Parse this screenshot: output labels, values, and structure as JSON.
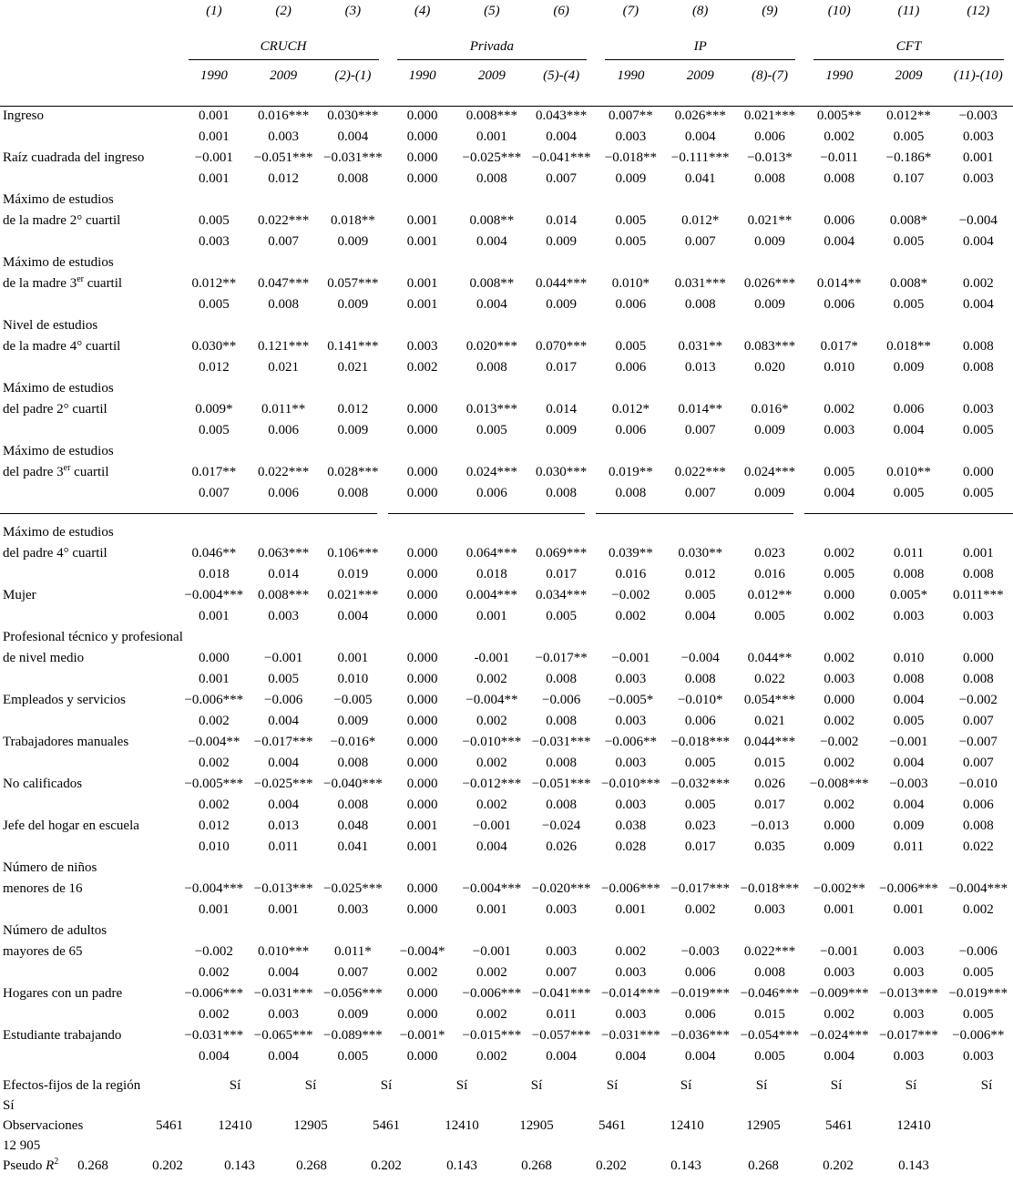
{
  "header": {
    "column_numbers": [
      "(1)",
      "(2)",
      "(3)",
      "(4)",
      "(5)",
      "(6)",
      "(7)",
      "(8)",
      "(9)",
      "(10)",
      "(11)",
      "(12)"
    ],
    "groups": [
      "CRUCH",
      "Privada",
      "IP",
      "CFT"
    ],
    "sub_columns": [
      "1990",
      "2009",
      "(2)-(1)",
      "1990",
      "2009",
      "(5)-(4)",
      "1990",
      "2009",
      "(8)-(7)",
      "1990",
      "2009",
      "(11)-(10)"
    ]
  },
  "rows": [
    {
      "label_lines": [
        "Ingreso"
      ],
      "coef": [
        "0.001",
        "0.016***",
        "0.030***",
        "0.000",
        "0.008***",
        "0.043***",
        "0.007**",
        "0.026***",
        "0.021***",
        "0.005**",
        "0.012**",
        "−0.003"
      ],
      "se": [
        "0.001",
        "0.003",
        "0.004",
        "0.000",
        "0.001",
        "0.004",
        "0.003",
        "0.004",
        "0.006",
        "0.002",
        "0.005",
        "0.003"
      ]
    },
    {
      "label_lines": [
        "Raíz cuadrada del ingreso"
      ],
      "coef": [
        "−0.001",
        "−0.051***",
        "−0.031***",
        "0.000",
        "−0.025***",
        "−0.041***",
        "−0.018**",
        "−0.111***",
        "−0.013*",
        "−0.011",
        "−0.186*",
        "0.001"
      ],
      "se": [
        "0.001",
        "0.012",
        "0.008",
        "0.000",
        "0.008",
        "0.007",
        "0.009",
        "0.041",
        "0.008",
        "0.008",
        "0.107",
        "0.003"
      ]
    },
    {
      "label_lines": [
        "Máximo de estudios",
        "de la madre 2° cuartil"
      ],
      "coef": [
        "0.005",
        "0.022***",
        "0.018**",
        "0.001",
        "0.008**",
        "0.014",
        "0.005",
        "0.012*",
        "0.021**",
        "0.006",
        "0.008*",
        "−0.004"
      ],
      "se": [
        "0.003",
        "0.007",
        "0.009",
        "0.001",
        "0.004",
        "0.009",
        "0.005",
        "0.007",
        "0.009",
        "0.004",
        "0.005",
        "0.004"
      ]
    },
    {
      "label_lines": [
        "Máximo de estudios",
        "de la madre 3^{er} cuartil"
      ],
      "coef": [
        "0.012**",
        "0.047***",
        "0.057***",
        "0.001",
        "0.008**",
        "0.044***",
        "0.010*",
        "0.031***",
        "0.026***",
        "0.014**",
        "0.008*",
        "0.002"
      ],
      "se": [
        "0.005",
        "0.008",
        "0.009",
        "0.001",
        "0.004",
        "0.009",
        "0.006",
        "0.008",
        "0.009",
        "0.006",
        "0.005",
        "0.004"
      ]
    },
    {
      "label_lines": [
        "Nivel de estudios",
        "de la madre 4° cuartil"
      ],
      "coef": [
        "0.030**",
        "0.121***",
        "0.141***",
        "0.003",
        "0.020***",
        "0.070***",
        "0.005",
        "0.031**",
        "0.083***",
        "0.017*",
        "0.018**",
        "0.008"
      ],
      "se": [
        "0.012",
        "0.021",
        "0.021",
        "0.002",
        "0.008",
        "0.017",
        "0.006",
        "0.013",
        "0.020",
        "0.010",
        "0.009",
        "0.008"
      ]
    },
    {
      "label_lines": [
        "Máximo de estudios",
        "del padre 2° cuartil"
      ],
      "coef": [
        "0.009*",
        "0.011**",
        "0.012",
        "0.000",
        "0.013***",
        "0.014",
        "0.012*",
        "0.014**",
        "0.016*",
        "0.002",
        "0.006",
        "0.003"
      ],
      "se": [
        "0.005",
        "0.006",
        "0.009",
        "0.000",
        "0.005",
        "0.009",
        "0.006",
        "0.007",
        "0.009",
        "0.003",
        "0.004",
        "0.005"
      ]
    },
    {
      "label_lines": [
        "Máximo de estudios",
        "del padre 3^{er} cuartil"
      ],
      "coef": [
        "0.017**",
        "0.022***",
        "0.028***",
        "0.000",
        "0.024***",
        "0.030***",
        "0.019**",
        "0.022***",
        "0.024***",
        "0.005",
        "0.010**",
        "0.000"
      ],
      "se": [
        "0.007",
        "0.006",
        "0.008",
        "0.000",
        "0.006",
        "0.008",
        "0.008",
        "0.007",
        "0.009",
        "0.004",
        "0.005",
        "0.005"
      ]
    },
    {
      "rule_before": true,
      "label_lines": [
        "Máximo de estudios",
        "del padre 4° cuartil"
      ],
      "coef": [
        "0.046**",
        "0.063***",
        "0.106***",
        "0.000",
        "0.064***",
        "0.069***",
        "0.039**",
        "0.030**",
        "0.023",
        "0.002",
        "0.011",
        "0.001"
      ],
      "se": [
        "0.018",
        "0.014",
        "0.019",
        "0.000",
        "0.018",
        "0.017",
        "0.016",
        "0.012",
        "0.016",
        "0.005",
        "0.008",
        "0.008"
      ]
    },
    {
      "label_lines": [
        "Mujer"
      ],
      "coef": [
        "−0.004***",
        "0.008***",
        "0.021***",
        "0.000",
        "0.004***",
        "0.034***",
        "−0.002",
        "0.005",
        "0.012**",
        "0.000",
        "0.005*",
        "0.011***"
      ],
      "se": [
        "0.001",
        "0.003",
        "0.004",
        "0.000",
        "0.001",
        "0.005",
        "0.002",
        "0.004",
        "0.005",
        "0.002",
        "0.003",
        "0.003"
      ]
    },
    {
      "label_lines": [
        "Profesional técnico y profesional",
        "de nivel medio"
      ],
      "coef": [
        "0.000",
        "−0.001",
        "0.001",
        "0.000",
        "-0.001",
        "−0.017**",
        "−0.001",
        "−0.004",
        "0.044**",
        "0.002",
        "0.010",
        "0.000"
      ],
      "se": [
        "0.001",
        "0.005",
        "0.010",
        "0.000",
        "0.002",
        "0.008",
        "0.003",
        "0.008",
        "0.022",
        "0.003",
        "0.008",
        "0.008"
      ]
    },
    {
      "label_lines": [
        "Empleados y servicios"
      ],
      "coef": [
        "−0.006***",
        "−0.006",
        "−0.005",
        "0.000",
        "−0.004**",
        "−0.006",
        "−0.005*",
        "−0.010*",
        "0.054***",
        "0.000",
        "0.004",
        "−0.002"
      ],
      "se": [
        "0.002",
        "0.004",
        "0.009",
        "0.000",
        "0.002",
        "0.008",
        "0.003",
        "0.006",
        "0.021",
        "0.002",
        "0.005",
        "0.007"
      ]
    },
    {
      "label_lines": [
        "Trabajadores manuales"
      ],
      "coef": [
        "−0.004**",
        "−0.017***",
        "−0.016*",
        "0.000",
        "−0.010***",
        "−0.031***",
        "−0.006**",
        "−0.018***",
        "0.044***",
        "−0.002",
        "−0.001",
        "−0.007"
      ],
      "se": [
        "0.002",
        "0.004",
        "0.008",
        "0.000",
        "0.002",
        "0.008",
        "0.003",
        "0.005",
        "0.015",
        "0.002",
        "0.004",
        "0.007"
      ]
    },
    {
      "label_lines": [
        "No calificados"
      ],
      "coef": [
        "−0.005***",
        "−0.025***",
        "−0.040***",
        "0.000",
        "−0.012***",
        "−0.051***",
        "−0.010***",
        "−0.032***",
        "0.026",
        "−0.008***",
        "−0.003",
        "−0.010"
      ],
      "se": [
        "0.002",
        "0.004",
        "0.008",
        "0.000",
        "0.002",
        "0.008",
        "0.003",
        "0.005",
        "0.017",
        "0.002",
        "0.004",
        "0.006"
      ]
    },
    {
      "label_lines": [
        "Jefe del hogar en escuela"
      ],
      "coef": [
        "0.012",
        "0.013",
        "0.048",
        "0.001",
        "−0.001",
        "−0.024",
        "0.038",
        "0.023",
        "−0.013",
        "0.000",
        "0.009",
        "0.008"
      ],
      "se": [
        "0.010",
        "0.011",
        "0.041",
        "0.001",
        "0.004",
        "0.026",
        "0.028",
        "0.017",
        "0.035",
        "0.009",
        "0.011",
        "0.022"
      ]
    },
    {
      "label_lines": [
        "Número de niños",
        "menores de 16"
      ],
      "coef": [
        "−0.004***",
        "−0.013***",
        "−0.025***",
        "0.000",
        "−0.004***",
        "−0.020***",
        "−0.006***",
        "−0.017***",
        "−0.018***",
        "−0.002**",
        "−0.006***",
        "−0.004***"
      ],
      "se": [
        "0.001",
        "0.001",
        "0.003",
        "0.000",
        "0.001",
        "0.003",
        "0.001",
        "0.002",
        "0.003",
        "0.001",
        "0.001",
        "0.002"
      ]
    },
    {
      "label_lines": [
        "Número de adultos",
        "mayores de 65"
      ],
      "coef": [
        "−0.002",
        "0.010***",
        "0.011*",
        "−0.004*",
        "−0.001",
        "0.003",
        "0.002",
        "−0.003",
        "0.022***",
        "−0.001",
        "0.003",
        "−0.006"
      ],
      "se": [
        "0.002",
        "0.004",
        "0.007",
        "0.002",
        "0.002",
        "0.007",
        "0.003",
        "0.006",
        "0.008",
        "0.003",
        "0.003",
        "0.005"
      ]
    },
    {
      "label_lines": [
        "Hogares con un padre"
      ],
      "coef": [
        "−0.006***",
        "−0.031***",
        "−0.056***",
        "0.000",
        "−0.006***",
        "−0.041***",
        "−0.014***",
        "−0.019***",
        "−0.046***",
        "−0.009***",
        "−0.013***",
        "−0.019***"
      ],
      "se": [
        "0.002",
        "0.003",
        "0.009",
        "0.000",
        "0.002",
        "0.011",
        "0.003",
        "0.006",
        "0.015",
        "0.002",
        "0.003",
        "0.005"
      ]
    },
    {
      "label_lines": [
        "Estudiante trabajando"
      ],
      "coef": [
        "−0.031***",
        "−0.065***",
        "−0.089***",
        "−0.001*",
        "−0.015***",
        "−0.057***",
        "−0.031***",
        "−0.036***",
        "−0.054***",
        "−0.024***",
        "−0.017***",
        "−0.006**"
      ],
      "se": [
        "0.004",
        "0.004",
        "0.005",
        "0.000",
        "0.002",
        "0.004",
        "0.004",
        "0.004",
        "0.005",
        "0.004",
        "0.003",
        "0.003"
      ]
    }
  ],
  "footer": {
    "fixed_effects": {
      "label": "Efectos-fijos de la región",
      "values": [
        "Sí",
        "Sí",
        "Sí",
        "Sí",
        "Sí",
        "Sí",
        "Sí",
        "Sí",
        "Sí",
        "Sí",
        "Sí",
        "Sí"
      ]
    },
    "observations": {
      "label": "Observaciones",
      "values": [
        "5461",
        "12410",
        "12905",
        "5461",
        "12410",
        "12905",
        "5461",
        "12410",
        "12905",
        "5461",
        "12410",
        "12 905"
      ]
    },
    "pseudo_r2": {
      "label_prefix": "Pseudo ",
      "label_italic": "R",
      "label_sup": "2",
      "values": [
        "0.268",
        "0.202",
        "0.143",
        "0.268",
        "0.202",
        "0.143",
        "0.268",
        "0.202",
        "0.143",
        "0.268",
        "0.202",
        "0.143"
      ]
    }
  }
}
